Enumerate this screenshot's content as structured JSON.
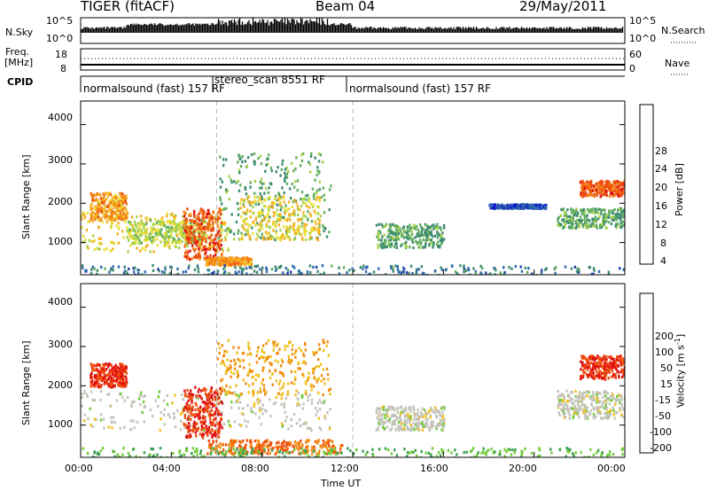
{
  "header": {
    "radar": "TIGER (fitACF)",
    "beam": "Beam 04",
    "date": "29/May/2011"
  },
  "panels": {
    "nsky": {
      "left_label": "N.Sky",
      "left_ticks": [
        "10^5",
        "10^0"
      ],
      "right_ticks": [
        "10^5",
        "10^0"
      ],
      "right_label": "N.Search"
    },
    "freq": {
      "left_label_line1": "Freq.",
      "left_label_line2": "[MHz]",
      "left_ticks": [
        "18",
        "8"
      ],
      "right_ticks": [
        "60",
        "0"
      ],
      "right_label": "Nave"
    },
    "cpid": {
      "label": "CPID",
      "modes": [
        {
          "text": "normalsound (fast) 157 RF"
        },
        {
          "text": "stereo_scan 8551 RF"
        },
        {
          "text": "normalsound (fast) 157 RF"
        }
      ]
    }
  },
  "colorbars": {
    "power": {
      "title": "Power [dB]",
      "ticks": [
        "28",
        "24",
        "20",
        "16",
        "12",
        "8",
        "4"
      ],
      "colors": [
        "#0a12d8",
        "#2440b0",
        "#2e6bb0",
        "#3e8c70",
        "#62b060",
        "#a6d24a",
        "#e8e038",
        "#f5b020",
        "#f27d16",
        "#ee4a12",
        "#e21010"
      ]
    },
    "velocity": {
      "title_line": "Velocity [m s",
      "title_sup": "-1",
      "title_end": "]",
      "ticks": [
        "200",
        "100",
        "50",
        "15",
        "-15",
        "-50",
        "-100",
        "-200"
      ],
      "colors": [
        "#1930b8",
        "#3a7ad4",
        "#3aa050",
        "#70cc38",
        "#c4c4bc",
        "#f0c020",
        "#f08c10",
        "#f05010",
        "#e01010"
      ]
    }
  },
  "chart_data": [
    {
      "type": "heatmap",
      "title": "Power",
      "xlabel": "Time UT",
      "ylabel": "Slant Range [km]",
      "xlim": [
        "00:00",
        "24:00"
      ],
      "ylim": [
        180,
        4600
      ],
      "x_ticks": [
        "00:00",
        "04:00",
        "08:00",
        "12:00",
        "16:00",
        "20:00",
        "00:00"
      ],
      "y_ticks": [
        1000,
        2000,
        3000,
        4000
      ],
      "mode_boundaries_hours": [
        6.0,
        12.0
      ],
      "regions": [
        {
          "t0": 0.0,
          "t1": 6.5,
          "r0": 800,
          "r1": 1800,
          "value": 20
        },
        {
          "t0": 0.4,
          "t1": 2.0,
          "r0": 1600,
          "r1": 2300,
          "value": 24
        },
        {
          "t0": 2.0,
          "t1": 5.5,
          "r0": 1000,
          "r1": 1600,
          "value": 16
        },
        {
          "t0": 4.5,
          "t1": 6.2,
          "r0": 600,
          "r1": 1900,
          "value": 28
        },
        {
          "t0": 6.0,
          "t1": 11.0,
          "r0": 1100,
          "r1": 3300,
          "value": 12
        },
        {
          "t0": 7.0,
          "t1": 10.5,
          "r0": 1100,
          "r1": 2200,
          "value": 20
        },
        {
          "t0": 5.5,
          "t1": 7.5,
          "r0": 450,
          "r1": 650,
          "value": 24
        },
        {
          "t0": 0.0,
          "t1": 24.0,
          "r0": 200,
          "r1": 450,
          "value": 8
        },
        {
          "t0": 13.0,
          "t1": 16.0,
          "r0": 900,
          "r1": 1500,
          "value": 12
        },
        {
          "t0": 18.0,
          "t1": 20.5,
          "r0": 1900,
          "r1": 2000,
          "value": 4
        },
        {
          "t0": 22.0,
          "t1": 24.0,
          "r0": 2200,
          "r1": 2600,
          "value": 28
        },
        {
          "t0": 21.0,
          "t1": 24.0,
          "r0": 1400,
          "r1": 1900,
          "value": 12
        }
      ]
    },
    {
      "type": "heatmap",
      "title": "Velocity",
      "xlabel": "Time UT",
      "ylabel": "Slant Range [km]",
      "xlim": [
        "00:00",
        "24:00"
      ],
      "ylim": [
        180,
        4600
      ],
      "x_ticks": [
        "00:00",
        "04:00",
        "08:00",
        "12:00",
        "16:00",
        "20:00",
        "00:00"
      ],
      "y_ticks": [
        1000,
        2000,
        3000,
        4000
      ],
      "mode_boundaries_hours": [
        6.0,
        12.0
      ],
      "regions": [
        {
          "t0": 0.0,
          "t1": 11.0,
          "r0": 900,
          "r1": 1900,
          "value": 0
        },
        {
          "t0": 0.4,
          "t1": 2.0,
          "r0": 2000,
          "r1": 2600,
          "value": -200
        },
        {
          "t0": 4.5,
          "t1": 6.2,
          "r0": 700,
          "r1": 2000,
          "value": -200
        },
        {
          "t0": 6.0,
          "t1": 11.0,
          "r0": 1800,
          "r1": 3200,
          "value": -50
        },
        {
          "t0": 5.5,
          "t1": 11.5,
          "r0": 300,
          "r1": 650,
          "value": -100
        },
        {
          "t0": 13.0,
          "t1": 16.0,
          "r0": 900,
          "r1": 1500,
          "value": 0
        },
        {
          "t0": 22.0,
          "t1": 24.0,
          "r0": 2200,
          "r1": 2800,
          "value": -200
        },
        {
          "t0": 21.0,
          "t1": 24.0,
          "r0": 1200,
          "r1": 1900,
          "value": 0
        },
        {
          "t0": 0.0,
          "t1": 24.0,
          "r0": 200,
          "r1": 450,
          "value": 50
        }
      ]
    }
  ],
  "axes": {
    "ylabel": "Slant Range [km]",
    "xlabel": "Time UT",
    "x_ticks": [
      "00:00",
      "04:00",
      "08:00",
      "12:00",
      "16:00",
      "20:00",
      "00:00"
    ],
    "y_ticks": [
      "4000",
      "3000",
      "2000",
      "1000"
    ]
  }
}
